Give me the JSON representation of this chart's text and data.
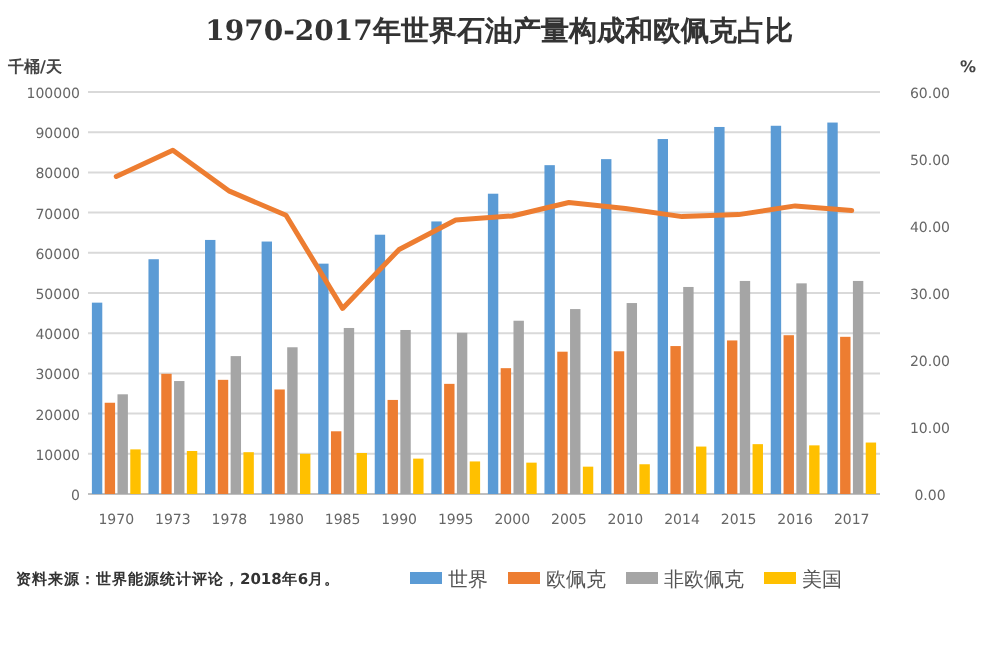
{
  "chart_data": {
    "type": "bar",
    "title": "1970-2017年世界石油产量构成和欧佩克占比",
    "ylabel": "千桶/天",
    "y2label": "%",
    "categories": [
      "1970",
      "1973",
      "1978",
      "1980",
      "1985",
      "1990",
      "1995",
      "2000",
      "2005",
      "2010",
      "2014",
      "2015",
      "2016",
      "2017"
    ],
    "series": [
      {
        "name": "世界",
        "color": "#5b9bd5",
        "values": [
          47600,
          58400,
          63200,
          62800,
          57300,
          64500,
          67800,
          74700,
          81800,
          83300,
          88300,
          91300,
          91600,
          92400
        ]
      },
      {
        "name": "欧佩克",
        "color": "#ed7d31",
        "values": [
          22700,
          29900,
          28400,
          26000,
          15600,
          23400,
          27400,
          31300,
          35400,
          35500,
          36800,
          38200,
          39500,
          39100
        ]
      },
      {
        "name": "非欧佩克",
        "color": "#a5a5a5",
        "values": [
          24800,
          28100,
          34300,
          36500,
          41300,
          40800,
          40100,
          43100,
          46000,
          47500,
          51500,
          53000,
          52400,
          53000
        ]
      },
      {
        "name": "美国",
        "color": "#ffc000",
        "values": [
          11100,
          10700,
          10400,
          10000,
          10200,
          8800,
          8100,
          7800,
          6800,
          7400,
          11800,
          12400,
          12100,
          12800
        ]
      },
      {
        "type": "line",
        "axis": "y2",
        "color": "#ed7d31",
        "values": [
          47.4,
          51.3,
          45.2,
          41.6,
          27.7,
          36.5,
          40.9,
          41.5,
          43.5,
          42.6,
          41.4,
          41.7,
          43.0,
          42.3
        ]
      }
    ],
    "ylim": [
      0,
      100000
    ],
    "yticks": [
      0,
      10000,
      20000,
      30000,
      40000,
      50000,
      60000,
      70000,
      80000,
      90000,
      100000
    ],
    "y2lim": [
      0,
      60
    ],
    "y2ticks": [
      {
        "value": 0,
        "label": "0.00"
      },
      {
        "value": 10,
        "label": "10.00"
      },
      {
        "value": 20,
        "label": "20.00"
      },
      {
        "value": 30,
        "label": "30.00"
      },
      {
        "value": 40,
        "label": "40.00"
      },
      {
        "value": 50,
        "label": "50.00"
      },
      {
        "value": 60,
        "label": "60.00"
      }
    ],
    "grid": "y",
    "legend": "bottom",
    "annotations": [
      "资料来源：世界能源统计评论，2018年6月。"
    ]
  }
}
